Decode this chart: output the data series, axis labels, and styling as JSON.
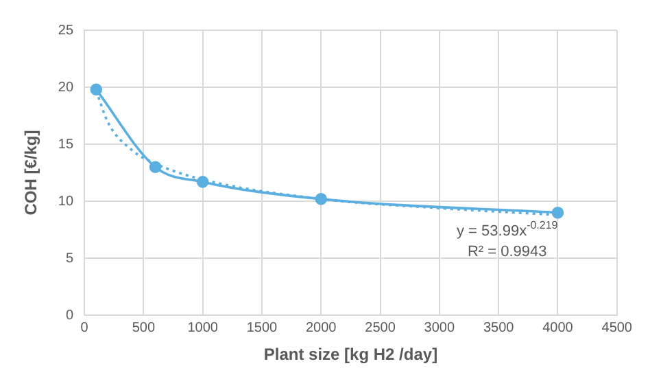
{
  "chart_data": {
    "type": "line",
    "xlabel": "Plant size [kg H2 /day]",
    "ylabel": "COH [€/kg]",
    "x": [
      100,
      600,
      1000,
      2000,
      4000
    ],
    "series": [
      {
        "color": "#5aafe0",
        "values": [
          19.8,
          13.0,
          11.7,
          10.2,
          9.0
        ],
        "marker": "circle",
        "line_style": "solid"
      },
      {
        "color": "#5aafe0",
        "x": [
          100,
          200,
          400,
          600,
          1000,
          2000,
          3000,
          4000
        ],
        "values": [
          19.7,
          16.9,
          14.5,
          13.3,
          11.9,
          10.2,
          9.4,
          8.8
        ],
        "marker": "none",
        "line_style": "dotted"
      }
    ],
    "annotations": [
      "y = 53.99x$^{-0.219}$",
      "R² = 0.9943"
    ],
    "xlim": [
      0,
      4500
    ],
    "xticks": [
      0,
      500,
      1000,
      1500,
      2000,
      2500,
      3000,
      3500,
      4000,
      4500
    ],
    "ylim": [
      0,
      25
    ],
    "yticks": [
      0,
      5,
      10,
      15,
      20,
      25
    ],
    "grid": true,
    "legend": false
  }
}
